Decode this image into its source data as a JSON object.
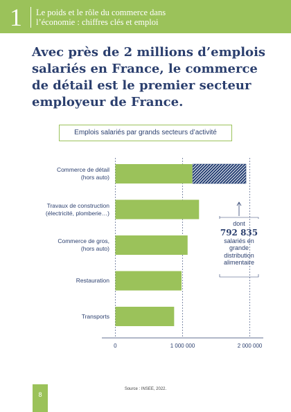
{
  "header": {
    "number": "1",
    "title": "Le poids et le rôle du commerce dans\nl’économie : chiffres clés et emploi"
  },
  "heading": "Avec près de 2 millions d’emplois salariés en France, le commerce de détail est le premier secteur employeur de France.",
  "chart_data": {
    "type": "bar",
    "orientation": "horizontal",
    "stacked": true,
    "title": "Emplois salariés par grands secteurs d’activité",
    "categories": [
      "Commerce de détail\n(hors auto)",
      "Travaux de construction\n(électricité, plomberie…)",
      "Commerce de gros,\n(hors auto)",
      "Restauration",
      "Transports"
    ],
    "series": [
      {
        "color": "#9bc25a",
        "values": [
          1150000,
          1250000,
          1080000,
          990000,
          880000
        ]
      },
      {
        "color": "#1f3a70",
        "values": [
          792835,
          null,
          null,
          null,
          null
        ],
        "value_labels": [
          "792 835",
          null,
          null,
          null,
          null
        ]
      }
    ],
    "annotation": {
      "prefix": "dont",
      "text": "salariés en\ngrande\ndistribution\nalimentaire"
    },
    "xlim": [
      -200000,
      2200000
    ],
    "xticks": [
      0,
      {
        "value": 1000000,
        "label": "1 000 000"
      },
      {
        "value": 2000000,
        "label": "2 000 000"
      }
    ],
    "grid": true
  },
  "source": "Source : INSEE, 2022.",
  "page_number": "8"
}
